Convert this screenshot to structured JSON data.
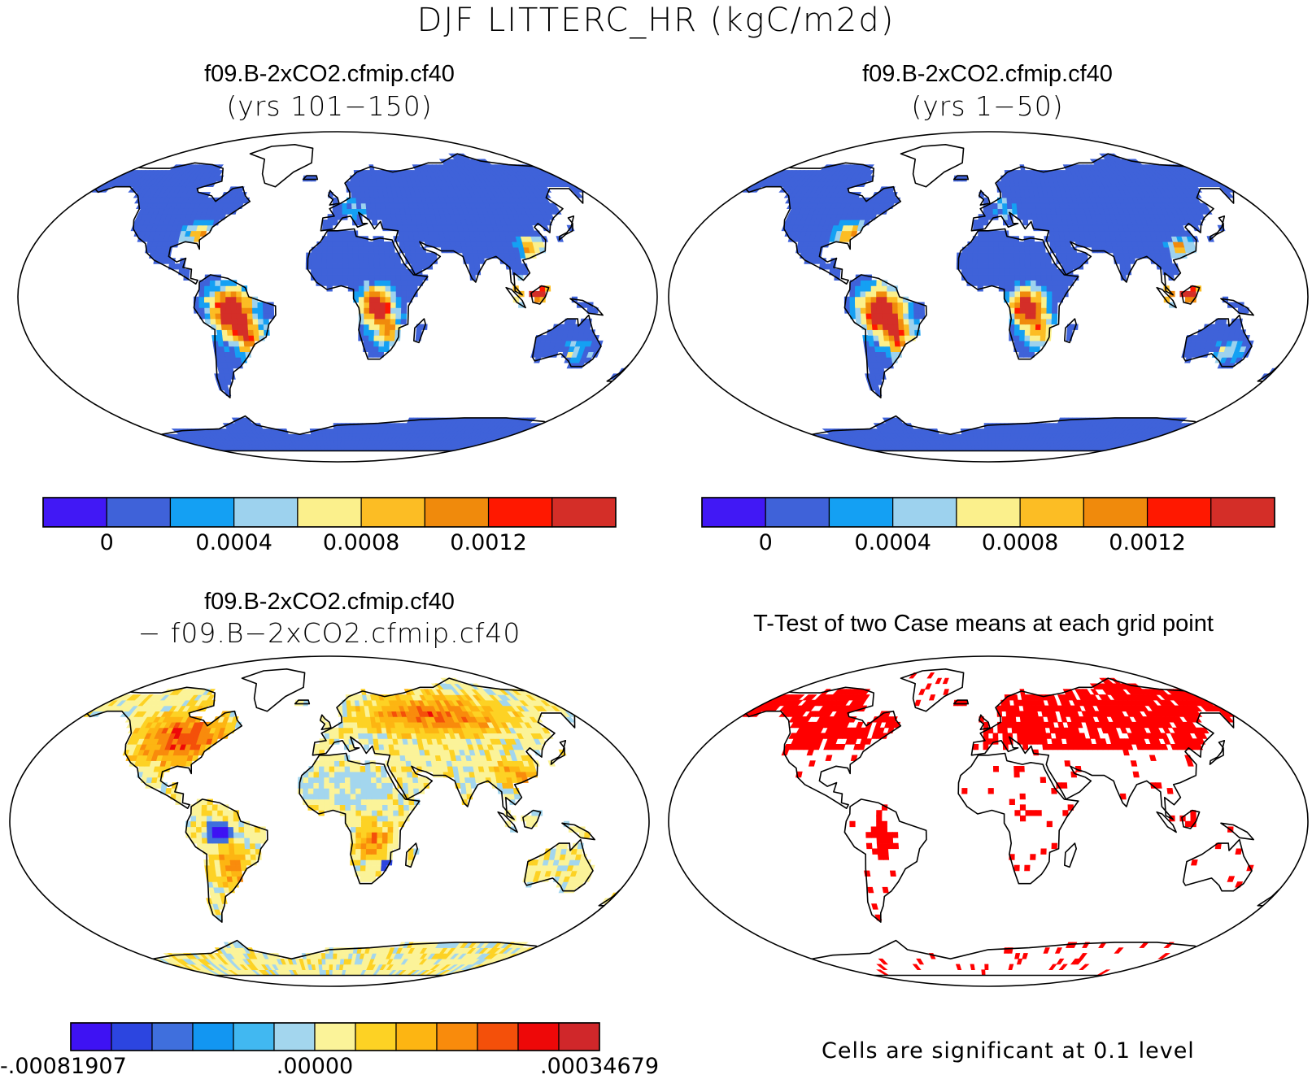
{
  "title": "DJF LITTERC_HR (kgC/m2d)",
  "panels": [
    {
      "id": "p1",
      "title": "f09.B-2xCO2.cfmip.cf40",
      "subtitle": "(yrs 101−150)",
      "map_type": "field"
    },
    {
      "id": "p2",
      "title": "f09.B-2xCO2.cfmip.cf40",
      "subtitle": "(yrs 1−50)",
      "map_type": "field"
    },
    {
      "id": "p3",
      "title": "f09.B-2xCO2.cfmip.cf40",
      "subtitle": "− f09.B−2xCO2.cfmip.cf40",
      "map_type": "difference"
    },
    {
      "id": "p4",
      "title": "T-Test of two Case means at each grid point",
      "subtitle": "",
      "map_type": "significance"
    }
  ],
  "colorbars": {
    "field": {
      "colors": [
        "#4118f5",
        "#3f62d9",
        "#14a0f3",
        "#9dd2ee",
        "#fbf08c",
        "#fcbd24",
        "#f08a0c",
        "#ff1800",
        "#d42e28"
      ],
      "tick_labels": [
        "0",
        "0.0004",
        "0.0008",
        "0.0012"
      ],
      "tick_positions": [
        1,
        3,
        5,
        7
      ]
    },
    "difference": {
      "colors": [
        "#3e12f3",
        "#2c45e0",
        "#3f6fdd",
        "#1296f2",
        "#41b8f1",
        "#a3d6ee",
        "#fbf399",
        "#fdd224",
        "#fdb512",
        "#f98b0c",
        "#f4500a",
        "#ee0808",
        "#d0272a"
      ],
      "tick_labels": [
        "-.00081907",
        ".00000",
        ".00034679"
      ],
      "tick_positions": [
        0,
        6,
        13
      ]
    }
  },
  "significance_note": "Cells are significant at 0.1 level",
  "colors": {
    "land_base": "#3f62d9",
    "significant": "#ff0000",
    "outline": "#000000"
  }
}
